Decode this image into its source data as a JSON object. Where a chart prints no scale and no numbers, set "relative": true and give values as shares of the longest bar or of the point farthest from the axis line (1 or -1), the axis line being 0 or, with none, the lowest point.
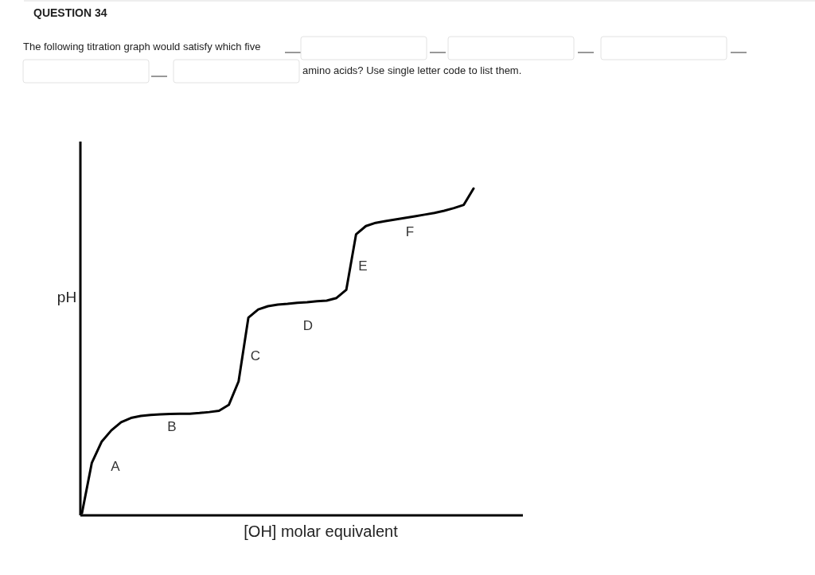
{
  "chart_data": {
    "type": "line",
    "title": "QUESTION 34",
    "subtitle": "The following titration graph would satisfy which five",
    "relative": true,
    "xlabel": "[OH] molar equivalent",
    "ylabel": "pH",
    "marker": "none",
    "line_style": "solid",
    "categories": [
      null,
      null,
      null,
      null,
      null,
      null,
      null,
      null,
      null,
      null,
      null,
      null,
      null,
      null,
      null,
      null,
      null,
      null,
      null,
      null,
      null,
      null,
      null,
      null,
      null,
      null,
      null,
      null,
      null,
      null,
      null,
      null,
      null,
      null,
      null,
      null,
      null,
      null,
      null,
      null,
      null
    ],
    "series": [
      {
        "color": "#000000",
        "values": [
          0.007,
          0.16,
          0.225,
          0.26,
          0.285,
          0.298,
          0.304,
          0.307,
          0.309,
          0.31,
          0.311,
          0.311,
          0.313,
          0.316,
          0.32,
          0.338,
          0.41,
          0.605,
          0.63,
          0.64,
          0.645,
          0.647,
          0.65,
          0.652,
          0.655,
          0.657,
          0.665,
          0.69,
          0.86,
          0.885,
          0.895,
          0.9,
          0.905,
          0.91,
          0.915,
          0.92,
          0.925,
          0.932,
          0.94,
          0.95,
          1
        ]
      }
    ],
    "annotations": [
      "amino acids? Use single letter code to list them.",
      "A",
      "B",
      "C",
      "D",
      "E",
      "F"
    ]
  }
}
